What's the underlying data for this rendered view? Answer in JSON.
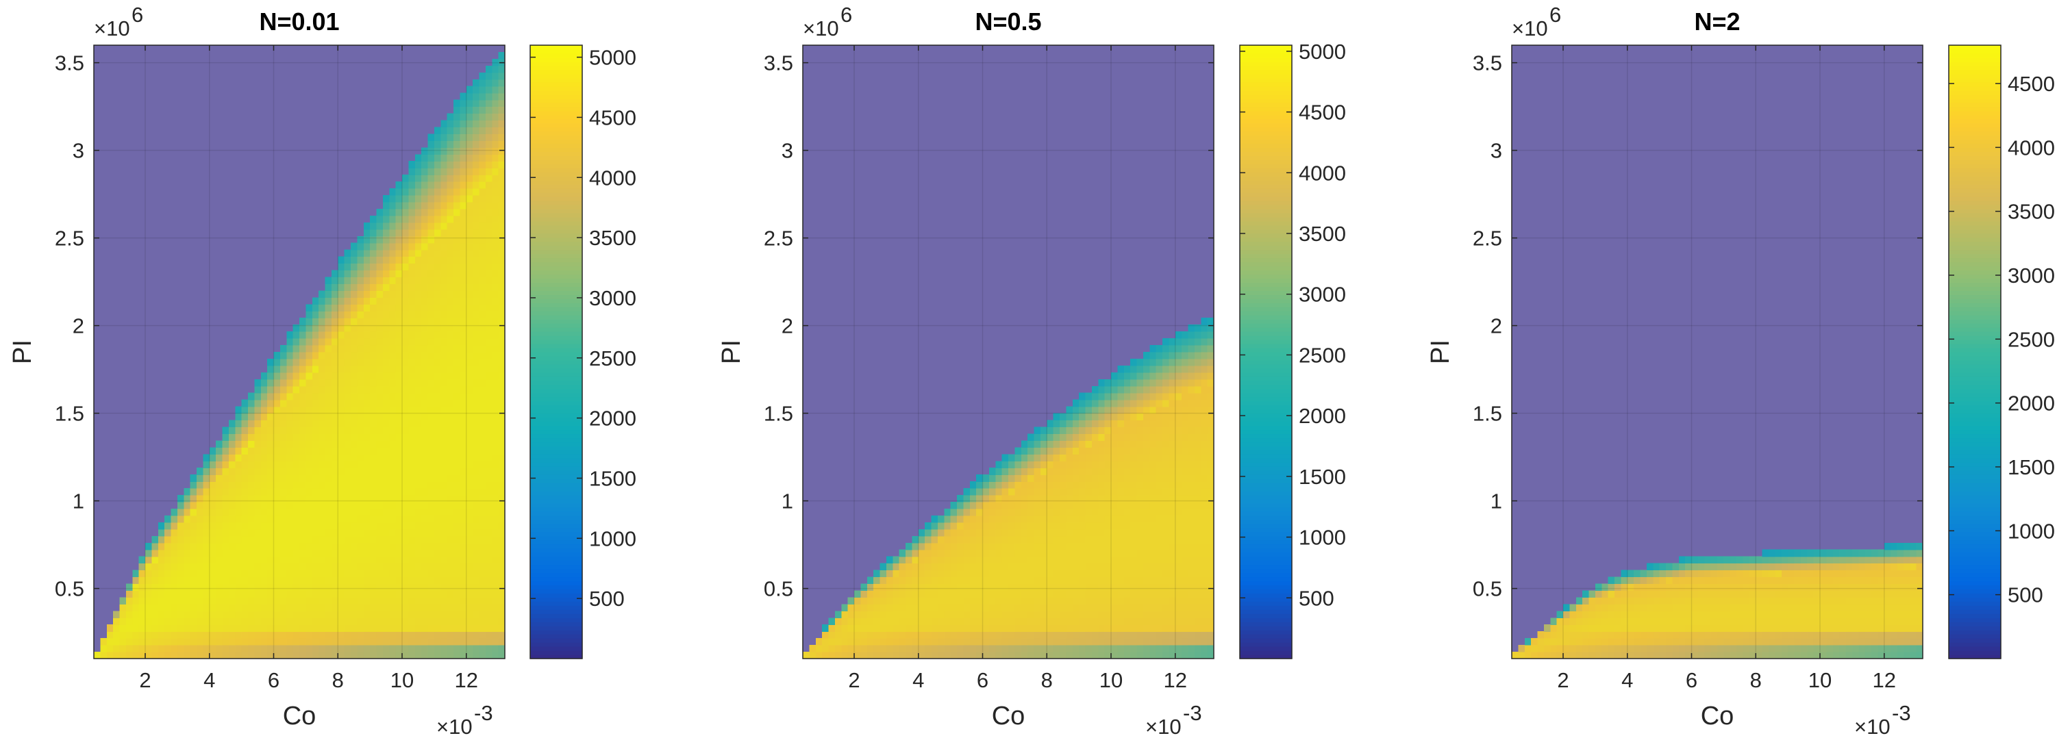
{
  "colormap": [
    "#352a87",
    "#0268e1",
    "#108ed2",
    "#0fadb7",
    "#38b99e",
    "#92bf73",
    "#d9ba56",
    "#fcce2e",
    "#f9fb0e"
  ],
  "underlay_color": "#7068aa",
  "chart_data": [
    {
      "type": "heatmap",
      "title": "N=0.01",
      "xlabel": "Co",
      "ylabel": "PI",
      "x_multiplier": "×10",
      "x_multiplier_exp": "-3",
      "y_multiplier": "×10",
      "y_multiplier_exp": "6",
      "xlim": [
        0.4,
        13.2
      ],
      "ylim": [
        0.1,
        3.6
      ],
      "xticks": [
        2,
        4,
        6,
        8,
        10,
        12
      ],
      "xtick_labels": [
        "2",
        "4",
        "6",
        "8",
        "10",
        "12"
      ],
      "yticks": [
        0.5,
        1,
        1.5,
        2,
        2.5,
        3,
        3.5
      ],
      "ytick_labels": [
        "0.5",
        "1",
        "1.5",
        "2",
        "2.5",
        "3",
        "3.5"
      ],
      "clim": [
        0,
        5100
      ],
      "colorbar_ticks": [
        500,
        1000,
        1500,
        2000,
        2500,
        3000,
        3500,
        4000,
        4500,
        5000
      ],
      "colorbar_tick_labels": [
        "500",
        "1000",
        "1500",
        "2000",
        "2500",
        "3000",
        "3500",
        "4000",
        "4500",
        "5000"
      ],
      "boundary": {
        "x": [
          0.4,
          2,
          4,
          6,
          8,
          10,
          12,
          13.2
        ],
        "y": [
          0.12,
          0.72,
          1.28,
          1.82,
          2.35,
          2.85,
          3.35,
          3.6
        ]
      },
      "peak_value": 5050
    },
    {
      "type": "heatmap",
      "title": "N=0.5",
      "xlabel": "Co",
      "ylabel": "PI",
      "x_multiplier": "×10",
      "x_multiplier_exp": "-3",
      "y_multiplier": "×10",
      "y_multiplier_exp": "6",
      "xlim": [
        0.4,
        13.2
      ],
      "ylim": [
        0.1,
        3.6
      ],
      "xticks": [
        2,
        4,
        6,
        8,
        10,
        12
      ],
      "xtick_labels": [
        "2",
        "4",
        "6",
        "8",
        "10",
        "12"
      ],
      "yticks": [
        0.5,
        1,
        1.5,
        2,
        2.5,
        3,
        3.5
      ],
      "ytick_labels": [
        "0.5",
        "1",
        "1.5",
        "2",
        "2.5",
        "3",
        "3.5"
      ],
      "clim": [
        0,
        5050
      ],
      "colorbar_ticks": [
        500,
        1000,
        1500,
        2000,
        2500,
        3000,
        3500,
        4000,
        4500,
        5000
      ],
      "colorbar_tick_labels": [
        "500",
        "1000",
        "1500",
        "2000",
        "2500",
        "3000",
        "3500",
        "4000",
        "4500",
        "5000"
      ],
      "boundary": {
        "x": [
          0.4,
          2,
          4,
          6,
          8,
          10,
          12,
          13.2
        ],
        "y": [
          0.12,
          0.48,
          0.82,
          1.15,
          1.45,
          1.72,
          1.95,
          2.05
        ]
      },
      "peak_value": 4700
    },
    {
      "type": "heatmap",
      "title": "N=2",
      "xlabel": "Co",
      "ylabel": "PI",
      "x_multiplier": "×10",
      "x_multiplier_exp": "-3",
      "y_multiplier": "×10",
      "y_multiplier_exp": "6",
      "xlim": [
        0.4,
        13.2
      ],
      "ylim": [
        0.1,
        3.6
      ],
      "xticks": [
        2,
        4,
        6,
        8,
        10,
        12
      ],
      "xtick_labels": [
        "2",
        "4",
        "6",
        "8",
        "10",
        "12"
      ],
      "yticks": [
        0.5,
        1,
        1.5,
        2,
        2.5,
        3,
        3.5
      ],
      "ytick_labels": [
        "0.5",
        "1",
        "1.5",
        "2",
        "2.5",
        "3",
        "3.5"
      ],
      "clim": [
        0,
        4800
      ],
      "colorbar_ticks": [
        500,
        1000,
        1500,
        2000,
        2500,
        3000,
        3500,
        4000,
        4500
      ],
      "colorbar_tick_labels": [
        "500",
        "1000",
        "1500",
        "2000",
        "2500",
        "3000",
        "3500",
        "4000",
        "4500"
      ],
      "boundary": {
        "x": [
          0.4,
          2,
          3,
          4,
          6,
          8,
          10,
          12,
          13.2
        ],
        "y": [
          0.12,
          0.38,
          0.52,
          0.6,
          0.68,
          0.7,
          0.72,
          0.74,
          0.76
        ]
      },
      "peak_value": 4450
    }
  ]
}
